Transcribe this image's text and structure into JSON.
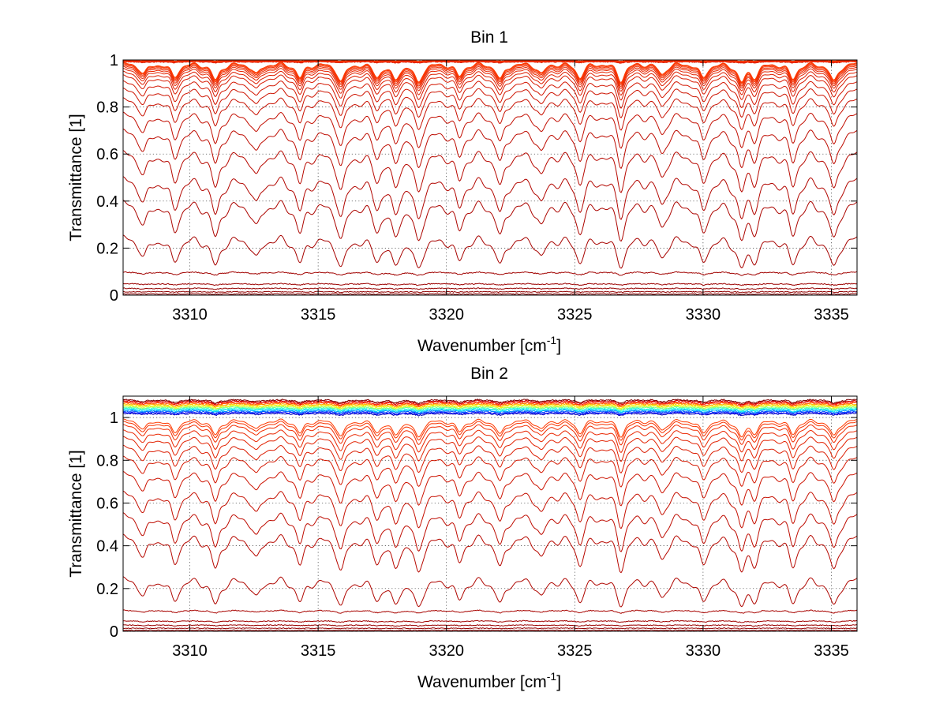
{
  "colors": {
    "background": "#ffffff",
    "axes": "#000000",
    "trace_low": "#8b0000",
    "trace_mid": "#c81414",
    "trace_high": "#ff3a00",
    "colormap": "jet"
  },
  "chart_data": [
    {
      "type": "line",
      "title": "Bin 1",
      "xlabel_main": "Wavenumber [cm",
      "xlabel_sup": "-1",
      "xlabel_close": "]",
      "ylabel": "Transmittance [1]",
      "xlim": [
        3307.4,
        3336.0
      ],
      "ylim": [
        0,
        1
      ],
      "xticks": [
        3310,
        3315,
        3320,
        3325,
        3330,
        3335
      ],
      "yticks": [
        0,
        0.2,
        0.4,
        0.6,
        0.8,
        1
      ],
      "grid": true,
      "series_description": "many transmittance spectra (one per path length), colour-coded dark red to orange; absorption lines deepen as transmittance level drops",
      "absorption_lines": [
        3308.2,
        3309.4,
        3311.0,
        3312.6,
        3314.3,
        3315.9,
        3317.3,
        3318.0,
        3318.9,
        3320.5,
        3322.1,
        3323.7,
        3325.2,
        3326.8,
        3328.4,
        3330.0,
        3331.5,
        3332.0,
        3333.5,
        3335.1
      ],
      "series_levels": [
        0.005,
        0.015,
        0.03,
        0.05,
        0.1,
        0.27,
        0.42,
        0.52,
        0.63,
        0.72,
        0.79,
        0.85,
        0.89,
        0.92,
        0.945,
        0.96,
        0.972,
        0.98,
        0.986,
        0.991,
        0.995,
        0.998
      ]
    },
    {
      "type": "line",
      "title": "Bin 2",
      "xlabel_main": "Wavenumber [cm",
      "xlabel_sup": "-1",
      "xlabel_close": "]",
      "ylabel": "Transmittance [1]",
      "xlim": [
        3307.4,
        3336.0
      ],
      "ylim": [
        0,
        1.1
      ],
      "xticks": [
        3310,
        3315,
        3320,
        3325,
        3330,
        3335
      ],
      "yticks": [
        0,
        0.2,
        0.4,
        0.6,
        0.8,
        1
      ],
      "grid": true,
      "series_description": "same family of spectra; top traces exceed 1 (up to about 1.08) with a blue-green-yellow band near 1.02-1.06",
      "absorption_lines": [
        3308.2,
        3309.4,
        3311.0,
        3312.6,
        3314.3,
        3315.9,
        3317.3,
        3318.0,
        3318.9,
        3320.5,
        3322.1,
        3323.7,
        3325.2,
        3326.8,
        3328.4,
        3330.0,
        3331.5,
        3332.0,
        3333.5,
        3335.1
      ],
      "series_levels": [
        0.005,
        0.015,
        0.03,
        0.05,
        0.1,
        0.27,
        0.47,
        0.57,
        0.67,
        0.76,
        0.83,
        0.88,
        0.92,
        0.95,
        0.975,
        0.99,
        1.0
      ],
      "upper_band_levels": [
        1.02,
        1.025,
        1.03,
        1.035,
        1.04,
        1.045,
        1.05,
        1.055,
        1.06,
        1.065,
        1.07,
        1.075,
        1.08,
        1.085
      ]
    }
  ]
}
